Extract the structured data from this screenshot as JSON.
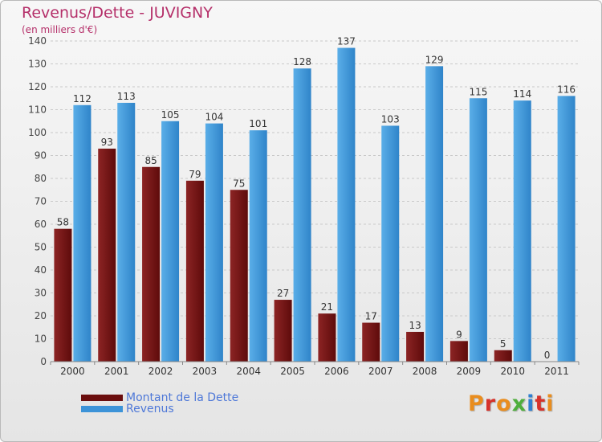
{
  "colors": {
    "dette": "#7a1515",
    "revenus": "#3c93d8",
    "title": "#b5306a",
    "legend_text": "#4e78d8",
    "logo": [
      "#e98d1e",
      "#d6322b",
      "#e98d1e",
      "#4fae3c",
      "#2f7fd1",
      "#d6322b"
    ]
  },
  "chart_data": {
    "type": "bar",
    "title": "Revenus/Dette - JUVIGNY",
    "subtitle": "(en milliers d'€)",
    "xlabel": "",
    "ylabel": "",
    "ylim": [
      0,
      140
    ],
    "ytick_step": 10,
    "grid": true,
    "legend_position": "bottom-left",
    "categories": [
      "2000",
      "2001",
      "2002",
      "2003",
      "2004",
      "2005",
      "2006",
      "2007",
      "2008",
      "2009",
      "2010",
      "2011"
    ],
    "series": [
      {
        "name": "Montant de la Dette",
        "values": [
          58,
          93,
          85,
          79,
          75,
          27,
          21,
          17,
          13,
          9,
          5,
          0
        ]
      },
      {
        "name": "Revenus",
        "values": [
          112,
          113,
          105,
          104,
          101,
          128,
          137,
          103,
          129,
          115,
          114,
          116
        ]
      }
    ]
  },
  "logo": {
    "text": "Proxiti",
    "letters": [
      "P",
      "r",
      "o",
      "x",
      "i",
      "t",
      "i"
    ]
  }
}
